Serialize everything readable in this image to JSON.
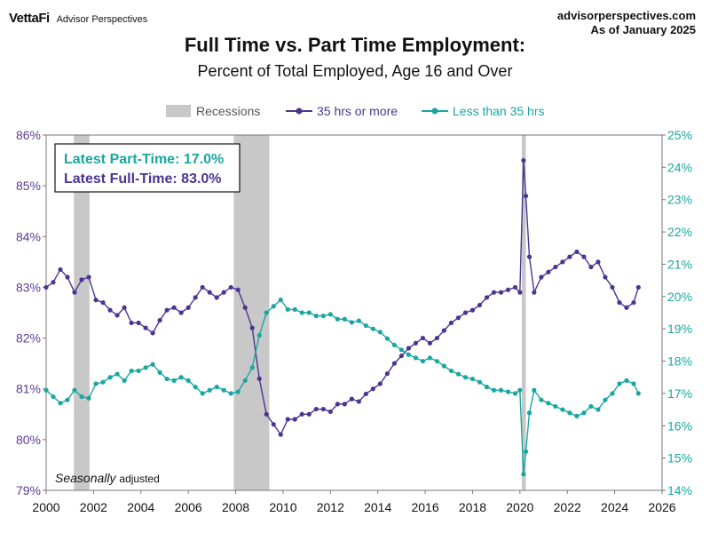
{
  "header": {
    "brand_logo": "VettaFi",
    "brand_sub": "Advisor Perspectives",
    "site": "advisorperspectives.com",
    "as_of": "As of January 2025",
    "title": "Full Time vs. Part Time Employment:",
    "subtitle": "Percent of Total Employed, Age 16 and Over"
  },
  "colors": {
    "full_time": "#4b3592",
    "part_time": "#1aa6a0",
    "recession": "#c8c8c8"
  },
  "chart_data": {
    "type": "line",
    "legend": [
      "Recessions",
      "35 hrs or more",
      "Less than 35 hrs"
    ],
    "legend_placement": "top",
    "annotation_part": "Latest Part-Time: 17.0%",
    "annotation_full": "Latest Full-Time: 83.0%",
    "note_italic": "Seasonally",
    "note_rest": "adjusted",
    "x_ticks": [
      "2000",
      "2002",
      "2004",
      "2006",
      "2008",
      "2010",
      "2012",
      "2014",
      "2016",
      "2018",
      "2020",
      "2022",
      "2024",
      "2026"
    ],
    "xlim": [
      2000,
      2026
    ],
    "y_left_ticks": [
      "79%",
      "80%",
      "81%",
      "82%",
      "83%",
      "84%",
      "85%",
      "86%"
    ],
    "y_left_lim": [
      79,
      86
    ],
    "y_right_ticks": [
      "14%",
      "15%",
      "16%",
      "17%",
      "18%",
      "19%",
      "20%",
      "21%",
      "22%",
      "23%",
      "24%",
      "25%"
    ],
    "y_right_lim": [
      14,
      25
    ],
    "recessions": [
      [
        2001.17,
        2001.83
      ],
      [
        2007.92,
        2009.42
      ],
      [
        2020.08,
        2020.25
      ]
    ],
    "series": [
      {
        "name": "35 hrs or more",
        "axis": "left",
        "x": [
          2000.0,
          2000.3,
          2000.6,
          2000.9,
          2001.2,
          2001.5,
          2001.8,
          2002.1,
          2002.4,
          2002.7,
          2003.0,
          2003.3,
          2003.6,
          2003.9,
          2004.2,
          2004.5,
          2004.8,
          2005.1,
          2005.4,
          2005.7,
          2006.0,
          2006.3,
          2006.6,
          2006.9,
          2007.2,
          2007.5,
          2007.8,
          2008.1,
          2008.4,
          2008.7,
          2009.0,
          2009.3,
          2009.6,
          2009.9,
          2010.2,
          2010.5,
          2010.8,
          2011.1,
          2011.4,
          2011.7,
          2012.0,
          2012.3,
          2012.6,
          2012.9,
          2013.2,
          2013.5,
          2013.8,
          2014.1,
          2014.4,
          2014.7,
          2015.0,
          2015.3,
          2015.6,
          2015.9,
          2016.2,
          2016.5,
          2016.8,
          2017.1,
          2017.4,
          2017.7,
          2018.0,
          2018.3,
          2018.6,
          2018.9,
          2019.2,
          2019.5,
          2019.8,
          2020.0,
          2020.15,
          2020.25,
          2020.4,
          2020.6,
          2020.9,
          2021.2,
          2021.5,
          2021.8,
          2022.1,
          2022.4,
          2022.7,
          2023.0,
          2023.3,
          2023.6,
          2023.9,
          2024.2,
          2024.5,
          2024.8,
          2025.0
        ],
        "values": [
          83.0,
          83.1,
          83.35,
          83.2,
          82.9,
          83.15,
          83.2,
          82.75,
          82.7,
          82.55,
          82.45,
          82.6,
          82.3,
          82.3,
          82.2,
          82.1,
          82.35,
          82.55,
          82.6,
          82.5,
          82.6,
          82.8,
          83.0,
          82.9,
          82.8,
          82.9,
          83.0,
          82.95,
          82.6,
          82.2,
          81.2,
          80.5,
          80.3,
          80.1,
          80.4,
          80.4,
          80.5,
          80.5,
          80.6,
          80.6,
          80.55,
          80.7,
          80.7,
          80.8,
          80.75,
          80.9,
          81.0,
          81.1,
          81.3,
          81.5,
          81.65,
          81.8,
          81.9,
          82.0,
          81.9,
          82.0,
          82.15,
          82.3,
          82.4,
          82.5,
          82.55,
          82.65,
          82.8,
          82.9,
          82.9,
          82.95,
          83.0,
          82.9,
          85.5,
          84.8,
          83.6,
          82.9,
          83.2,
          83.3,
          83.4,
          83.5,
          83.6,
          83.7,
          83.6,
          83.4,
          83.5,
          83.2,
          83.0,
          82.7,
          82.6,
          82.7,
          83.0
        ]
      },
      {
        "name": "Less than 35 hrs",
        "axis": "right",
        "x": [
          2000.0,
          2000.3,
          2000.6,
          2000.9,
          2001.2,
          2001.5,
          2001.8,
          2002.1,
          2002.4,
          2002.7,
          2003.0,
          2003.3,
          2003.6,
          2003.9,
          2004.2,
          2004.5,
          2004.8,
          2005.1,
          2005.4,
          2005.7,
          2006.0,
          2006.3,
          2006.6,
          2006.9,
          2007.2,
          2007.5,
          2007.8,
          2008.1,
          2008.4,
          2008.7,
          2009.0,
          2009.3,
          2009.6,
          2009.9,
          2010.2,
          2010.5,
          2010.8,
          2011.1,
          2011.4,
          2011.7,
          2012.0,
          2012.3,
          2012.6,
          2012.9,
          2013.2,
          2013.5,
          2013.8,
          2014.1,
          2014.4,
          2014.7,
          2015.0,
          2015.3,
          2015.6,
          2015.9,
          2016.2,
          2016.5,
          2016.8,
          2017.1,
          2017.4,
          2017.7,
          2018.0,
          2018.3,
          2018.6,
          2018.9,
          2019.2,
          2019.5,
          2019.8,
          2020.0,
          2020.15,
          2020.25,
          2020.4,
          2020.6,
          2020.9,
          2021.2,
          2021.5,
          2021.8,
          2022.1,
          2022.4,
          2022.7,
          2023.0,
          2023.3,
          2023.6,
          2023.9,
          2024.2,
          2024.5,
          2024.8,
          2025.0
        ],
        "values": [
          17.1,
          16.9,
          16.7,
          16.8,
          17.1,
          16.9,
          16.85,
          17.3,
          17.35,
          17.5,
          17.6,
          17.4,
          17.7,
          17.7,
          17.8,
          17.9,
          17.65,
          17.45,
          17.4,
          17.5,
          17.4,
          17.2,
          17.0,
          17.1,
          17.2,
          17.1,
          17.0,
          17.05,
          17.4,
          17.8,
          18.8,
          19.5,
          19.7,
          19.9,
          19.6,
          19.6,
          19.5,
          19.5,
          19.4,
          19.4,
          19.45,
          19.3,
          19.3,
          19.2,
          19.25,
          19.1,
          19.0,
          18.9,
          18.7,
          18.5,
          18.35,
          18.2,
          18.1,
          18.0,
          18.1,
          18.0,
          17.85,
          17.7,
          17.6,
          17.5,
          17.45,
          17.35,
          17.2,
          17.1,
          17.1,
          17.05,
          17.0,
          17.1,
          14.5,
          15.2,
          16.4,
          17.1,
          16.8,
          16.7,
          16.6,
          16.5,
          16.4,
          16.3,
          16.4,
          16.6,
          16.5,
          16.8,
          17.0,
          17.3,
          17.4,
          17.3,
          17.0
        ]
      }
    ]
  }
}
